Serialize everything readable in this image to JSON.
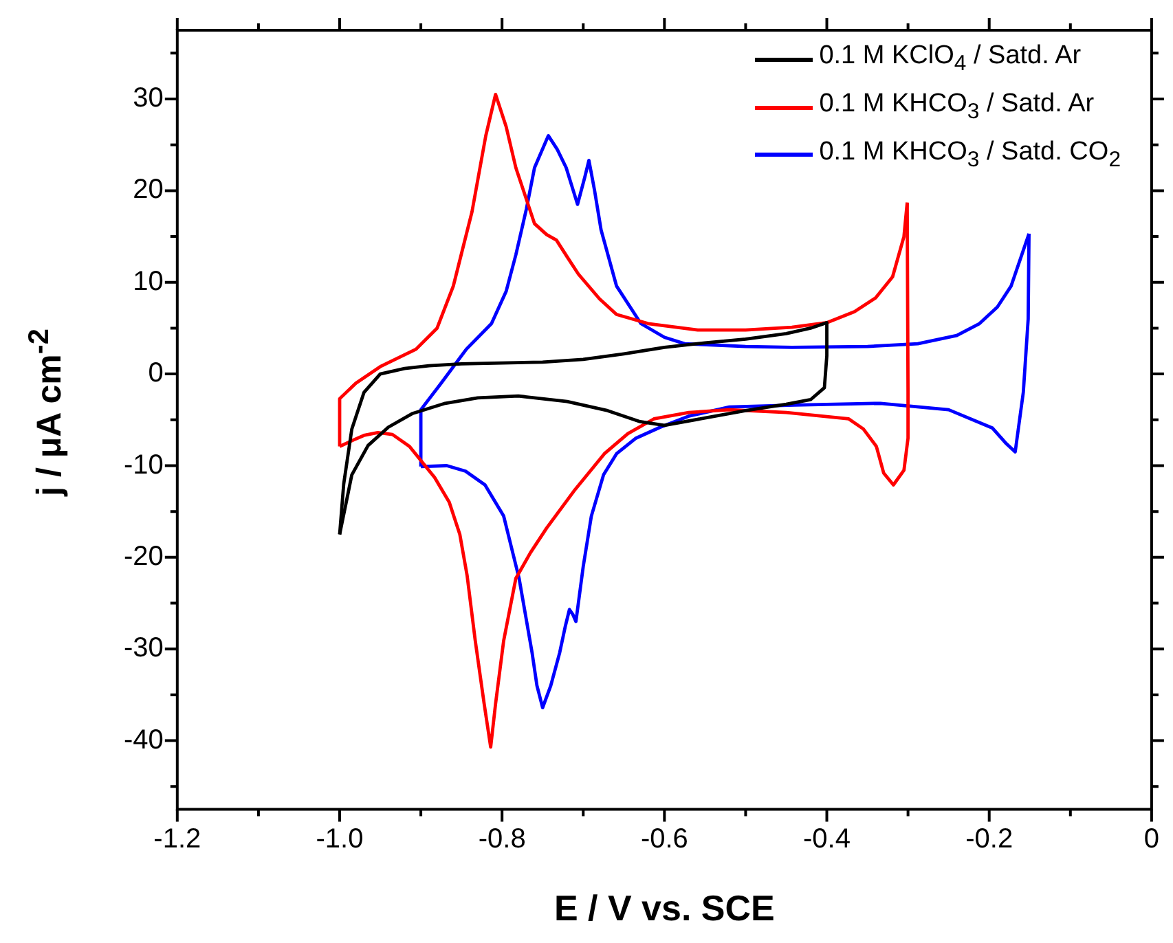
{
  "chart_data": {
    "type": "line",
    "xlabel": "E / V vs. SCE",
    "ylabel": "j / μA cm$^{-2}$",
    "xlim": [
      -1.2,
      0
    ],
    "ylim": [
      -47.5,
      37.5
    ],
    "xticks": [
      -1.2,
      {
        "value": -1.1,
        "label": null
      },
      {
        "value": -1.0,
        "label": "-1.0"
      },
      {
        "value": -0.9,
        "label": null
      },
      -0.8,
      {
        "value": -0.7,
        "label": null
      },
      -0.6,
      {
        "value": -0.5,
        "label": null
      },
      -0.4,
      {
        "value": -0.3,
        "label": null
      },
      -0.2,
      {
        "value": -0.1,
        "label": null
      },
      0
    ],
    "yticks": [
      {
        "value": -45,
        "label": null
      },
      -40,
      {
        "value": -35,
        "label": null
      },
      -30,
      {
        "value": -25,
        "label": null
      },
      -20,
      {
        "value": -15,
        "label": null
      },
      -10,
      {
        "value": -5,
        "label": null
      },
      0,
      {
        "value": 5,
        "label": null
      },
      10,
      {
        "value": 15,
        "label": null
      },
      20,
      {
        "value": 25,
        "label": null
      },
      30,
      {
        "value": 35,
        "label": null
      }
    ],
    "legend": "top right",
    "marker": "none",
    "line_style": "solid",
    "series": [
      {
        "name": "0.1 M KClO$_{4}$ / Satd. Ar",
        "color": "#000000",
        "x": [
          -1.0,
          -0.995,
          -0.985,
          -0.97,
          -0.95,
          -0.92,
          -0.89,
          -0.85,
          -0.8,
          -0.75,
          -0.7,
          -0.65,
          -0.6,
          -0.55,
          -0.5,
          -0.45,
          -0.42,
          -0.4
        ],
        "values": [
          -17.5,
          -12,
          -6,
          -2,
          0,
          0.6,
          0.9,
          1.1,
          1.2,
          1.3,
          1.6,
          2.2,
          2.9,
          3.4,
          3.8,
          4.4,
          5.0,
          5.6
        ]
      },
      {
        "color": "#000000",
        "x": [
          -0.4,
          -0.4,
          -0.403,
          -0.42,
          -0.45,
          -0.5,
          -0.55,
          -0.6,
          -0.63,
          -0.67,
          -0.72,
          -0.78,
          -0.83,
          -0.87,
          -0.91,
          -0.94,
          -0.965,
          -0.985,
          -1.0
        ],
        "values": [
          5.6,
          2,
          -1.5,
          -2.8,
          -3.3,
          -4.0,
          -4.8,
          -5.6,
          -5.2,
          -4.0,
          -3.0,
          -2.4,
          -2.6,
          -3.2,
          -4.3,
          -5.8,
          -7.8,
          -11,
          -17.5
        ]
      },
      {
        "name": "0.1 M KHCO$_{3}$ / Satd. Ar",
        "color": "#ff0000",
        "x": [
          -1.0,
          -1.0,
          -0.98,
          -0.95,
          -0.906,
          -0.88,
          -0.86,
          -0.837,
          -0.82,
          -0.808,
          -0.795,
          -0.783,
          -0.76,
          -0.745,
          -0.733,
          -0.72,
          -0.706,
          -0.68,
          -0.659,
          -0.62,
          -0.559,
          -0.5,
          -0.443,
          -0.4,
          -0.366,
          -0.34,
          -0.319,
          -0.305,
          -0.301
        ],
        "values": [
          -7.9,
          -2.7,
          -1.0,
          0.8,
          2.7,
          5,
          9.6,
          17.7,
          26,
          30.5,
          27,
          22.5,
          16.4,
          15.2,
          14.6,
          12.8,
          10.9,
          8.2,
          6.5,
          5.5,
          4.8,
          4.8,
          5.1,
          5.6,
          6.8,
          8.3,
          10.6,
          15,
          18.7
        ]
      },
      {
        "color": "#ff0000",
        "x": [
          -0.301,
          -0.3,
          -0.3,
          -0.305,
          -0.318,
          -0.33,
          -0.339,
          -0.355,
          -0.373,
          -0.45,
          -0.52,
          -0.57,
          -0.613,
          -0.645,
          -0.674,
          -0.71,
          -0.745,
          -0.765,
          -0.783,
          -0.798,
          -0.808,
          -0.814,
          -0.822,
          -0.833,
          -0.843,
          -0.852,
          -0.865,
          -0.883,
          -0.914,
          -0.935,
          -0.953,
          -0.97,
          -0.983,
          -1.0
        ],
        "values": [
          18.7,
          -2,
          -7,
          -10.5,
          -12.1,
          -10.8,
          -7.9,
          -6,
          -4.9,
          -4.2,
          -3.9,
          -4.2,
          -4.9,
          -6.5,
          -8.7,
          -12.6,
          -16.8,
          -19.5,
          -22.3,
          -29.1,
          -36,
          -40.7,
          -36,
          -29.1,
          -22,
          -17.5,
          -14,
          -11.3,
          -7.9,
          -6.6,
          -6.4,
          -6.7,
          -7.2,
          -7.9
        ]
      },
      {
        "name": "0.1 M KHCO$_{3}$ / Satd. CO$_{2}$",
        "color": "#0000ff",
        "x": [
          -0.9,
          -0.9,
          -0.875,
          -0.844,
          -0.813,
          -0.795,
          -0.783,
          -0.77,
          -0.76,
          -0.743,
          -0.732,
          -0.721,
          -0.707,
          -0.698,
          -0.693,
          -0.686,
          -0.678,
          -0.659,
          -0.629,
          -0.6,
          -0.575,
          -0.5,
          -0.443,
          -0.35,
          -0.288,
          -0.24,
          -0.212,
          -0.19,
          -0.173,
          -0.151
        ],
        "values": [
          -10.1,
          -3.9,
          -1,
          2.7,
          5.5,
          9,
          13,
          18,
          22.5,
          26.0,
          24.5,
          22.5,
          18.5,
          21.5,
          23.3,
          20,
          15.7,
          9.6,
          5.5,
          4,
          3.3,
          3.0,
          2.9,
          3.0,
          3.3,
          4.2,
          5.5,
          7.3,
          9.6,
          15.3
        ]
      },
      {
        "color": "#0000ff",
        "x": [
          -0.151,
          -0.152,
          -0.158,
          -0.168,
          -0.18,
          -0.196,
          -0.25,
          -0.334,
          -0.44,
          -0.52,
          -0.57,
          -0.605,
          -0.635,
          -0.659,
          -0.675,
          -0.69,
          -0.7,
          -0.709,
          -0.713,
          -0.717,
          -0.722,
          -0.729,
          -0.74,
          -0.75,
          -0.757,
          -0.763,
          -0.779,
          -0.798,
          -0.821,
          -0.845,
          -0.868,
          -0.9
        ],
        "values": [
          15.3,
          6,
          -2,
          -8.5,
          -7.5,
          -5.9,
          -3.9,
          -3.2,
          -3.4,
          -3.6,
          -4.6,
          -5.8,
          -7,
          -8.7,
          -11,
          -15.5,
          -21,
          -27,
          -26.2,
          -25.7,
          -27.5,
          -30.4,
          -34,
          -36.4,
          -34,
          -30.4,
          -22.3,
          -15.5,
          -12.1,
          -10.6,
          -10.0,
          -10.1
        ]
      }
    ]
  }
}
